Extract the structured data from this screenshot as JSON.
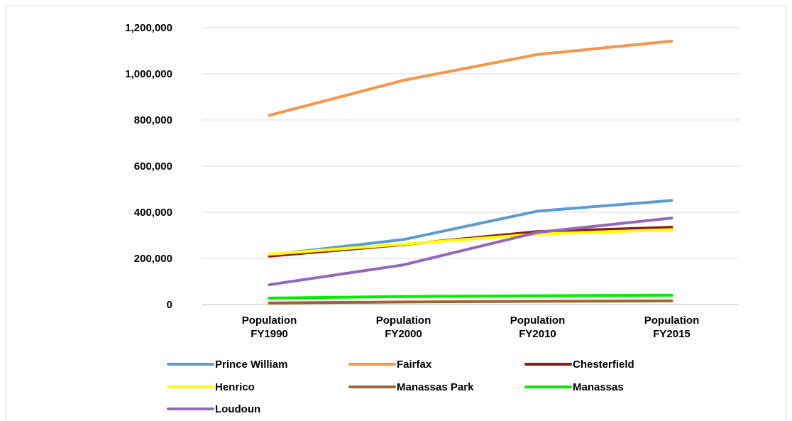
{
  "chart_data": {
    "type": "line",
    "title": "",
    "xlabel": "",
    "ylabel": "",
    "categories": [
      [
        "Population",
        "FY1990"
      ],
      [
        "Population",
        "FY2000"
      ],
      [
        "Population",
        "FY2010"
      ],
      [
        "Population",
        "FY2015"
      ]
    ],
    "ylim": [
      0,
      1200000
    ],
    "yticks": [
      0,
      200000,
      400000,
      600000,
      800000,
      1000000,
      1200000
    ],
    "ytick_labels": [
      "0",
      "200,000",
      "400,000",
      "600,000",
      "800,000",
      "1,000,000",
      "1,200,000"
    ],
    "grid": true,
    "legend_position": "bottom",
    "series": [
      {
        "name": "Prince William",
        "color": "#5B9BD5",
        "values": [
          215000,
          282000,
          405000,
          451000
        ]
      },
      {
        "name": "Fairfax",
        "color": "#F79646",
        "values": [
          820000,
          972000,
          1084000,
          1142000
        ]
      },
      {
        "name": "Chesterfield",
        "color": "#8B1A1A",
        "values": [
          210000,
          260000,
          316000,
          335000
        ]
      },
      {
        "name": "Henrico",
        "color": "#FFFF00",
        "values": [
          218000,
          262000,
          306000,
          325000
        ]
      },
      {
        "name": "Manassas Park",
        "color": "#A0652E",
        "values": [
          7000,
          11000,
          14000,
          16000
        ]
      },
      {
        "name": "Manassas",
        "color": "#00EE00",
        "values": [
          28000,
          35000,
          38000,
          41000
        ]
      },
      {
        "name": "Loudoun",
        "color": "#9467BD",
        "values": [
          86000,
          172000,
          313000,
          375000
        ]
      }
    ]
  }
}
